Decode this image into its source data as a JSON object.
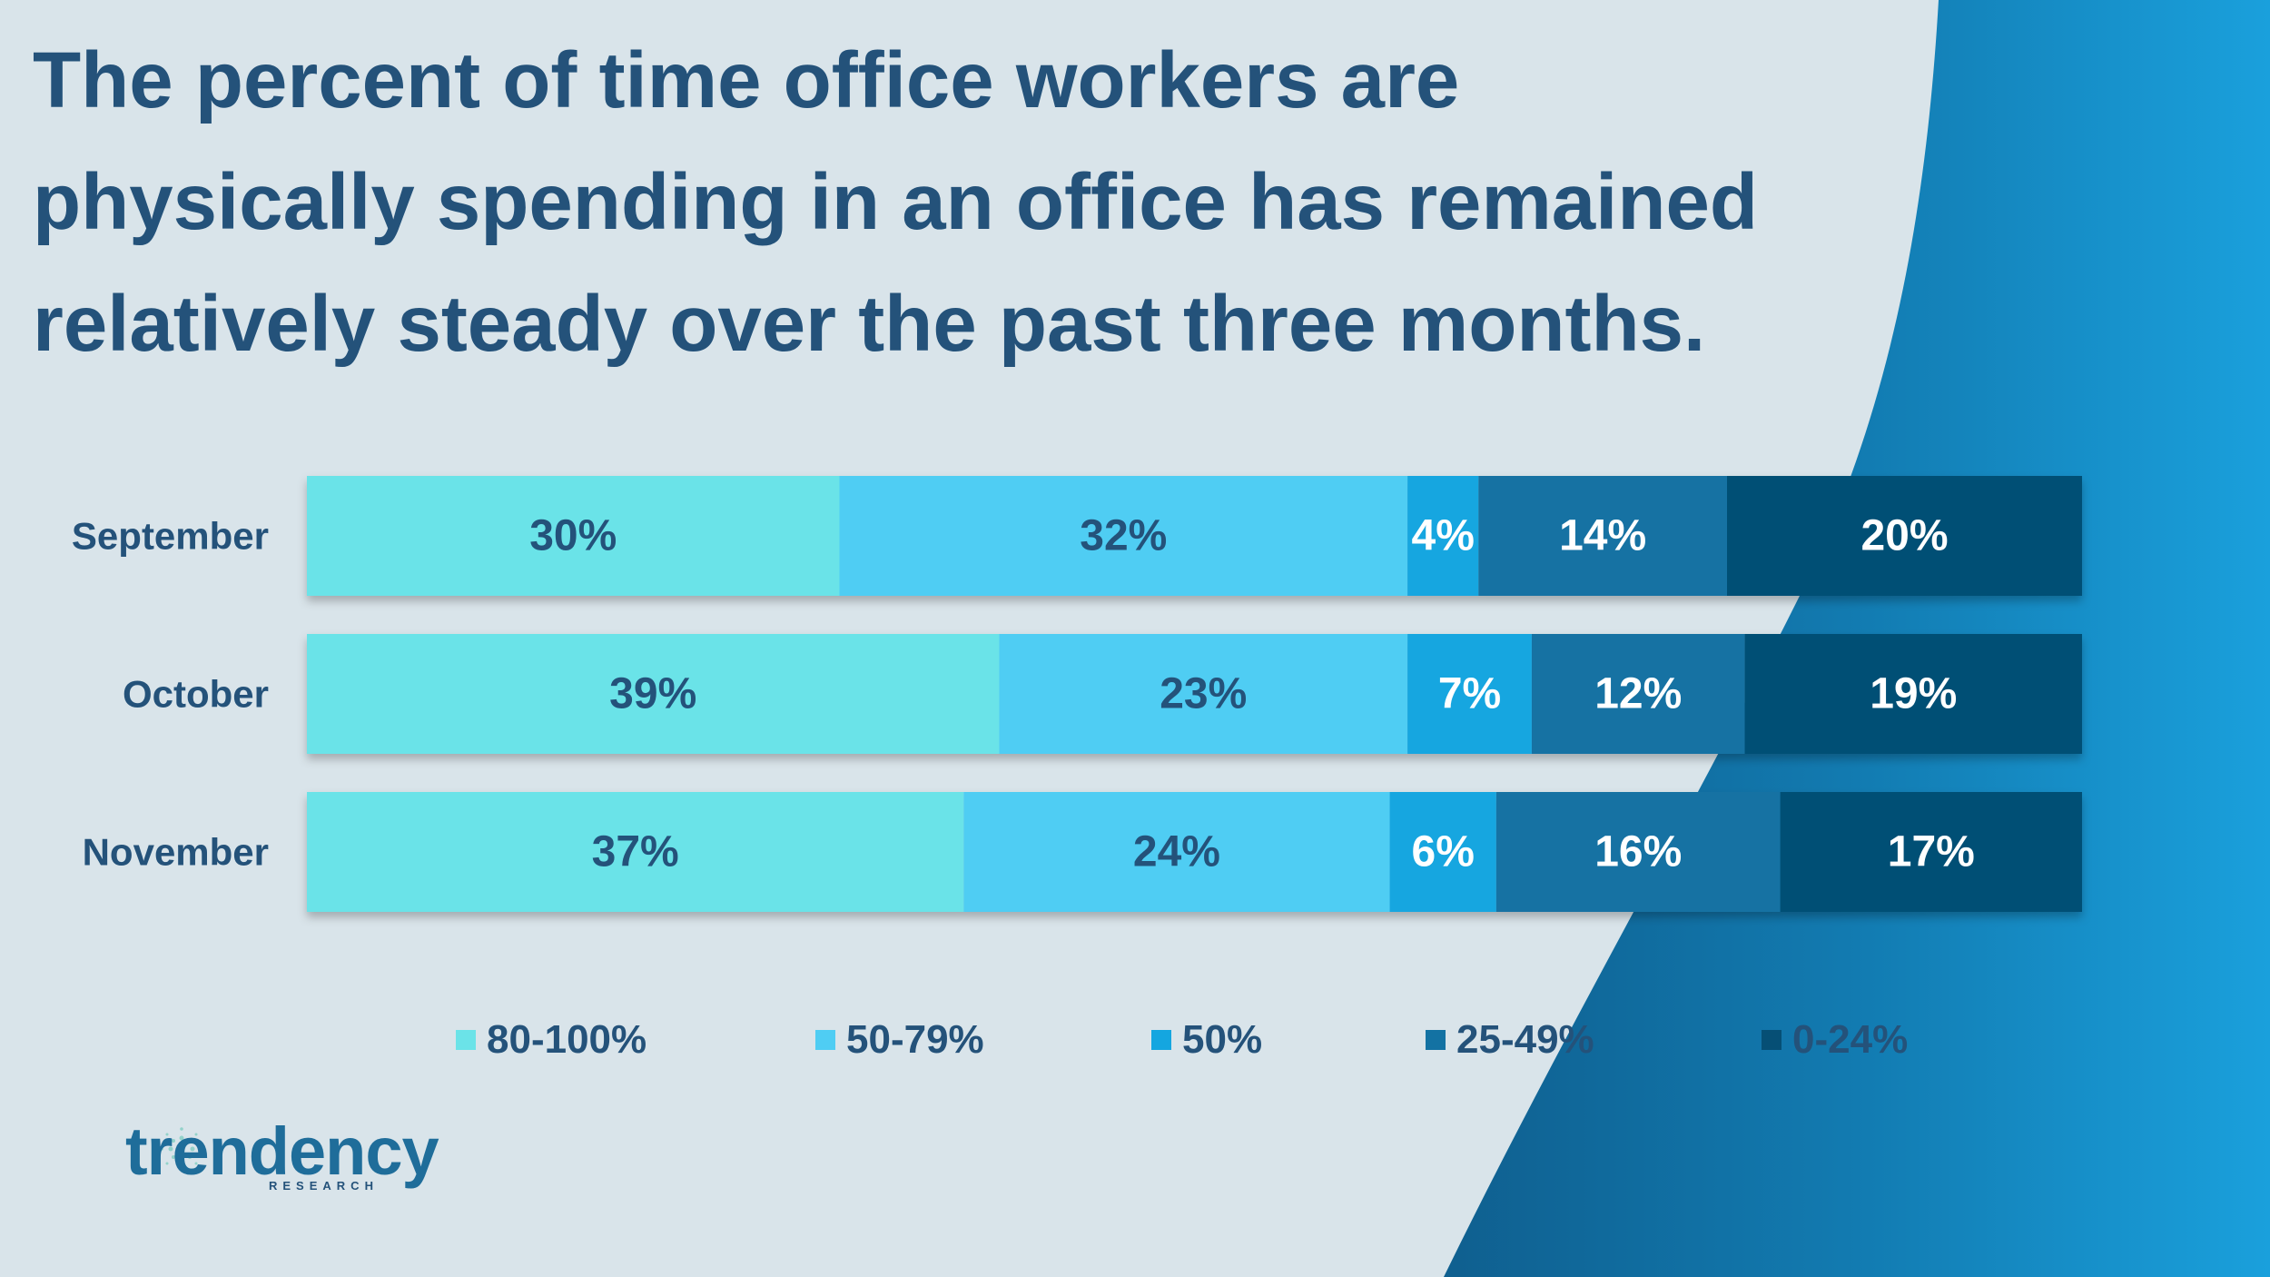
{
  "title_lines": [
    "The percent of time office workers are",
    "physically spending in an office has remained",
    "relatively steady over the past three months."
  ],
  "chart_data": {
    "type": "bar",
    "orientation": "horizontal",
    "stacked": true,
    "categories": [
      "September",
      "October",
      "November"
    ],
    "series": [
      {
        "name": "80-100%",
        "color": "#6be3e8",
        "label_color": "#24527a",
        "values": [
          30,
          39,
          37
        ]
      },
      {
        "name": "50-79%",
        "color": "#4fcdf3",
        "label_color": "#24527a",
        "values": [
          32,
          23,
          24
        ]
      },
      {
        "name": "50%",
        "color": "#14a6e0",
        "label_color": "#ffffff",
        "values": [
          4,
          7,
          6
        ]
      },
      {
        "name": "25-49%",
        "color": "#1372a3",
        "label_color": "#ffffff",
        "values": [
          14,
          12,
          16
        ]
      },
      {
        "name": "0-24%",
        "color": "#064f75",
        "label_color": "#ffffff",
        "values": [
          20,
          19,
          17
        ]
      }
    ],
    "data_labels": [
      [
        "30%",
        "32%",
        "4%",
        "14%",
        "20%"
      ],
      [
        "39%",
        "23%",
        "7%",
        "12%",
        "19%"
      ],
      [
        "37%",
        "24%",
        "6%",
        "16%",
        "17%"
      ]
    ],
    "legend_position": "bottom",
    "grid": false
  },
  "logo": {
    "name": "trendency",
    "sub": "RESEARCH"
  }
}
